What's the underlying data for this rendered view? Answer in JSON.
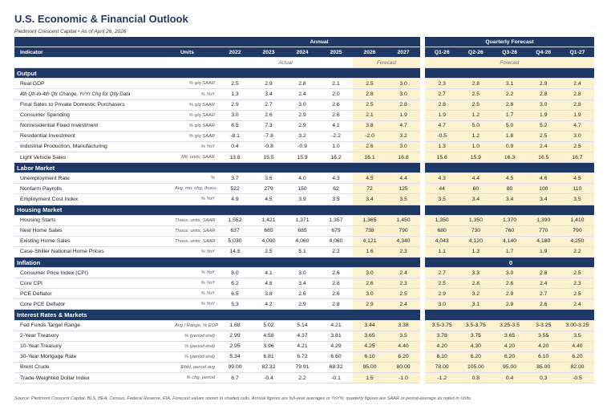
{
  "header": {
    "title": "U.S. Economic & Financial Outlook",
    "subtitle": "Piedmont Crescent Capital • As of April 26, 2026"
  },
  "table": {
    "group_headers": [
      "Annual",
      "Quarterly Forecast"
    ],
    "columns": [
      "Indicator",
      "Units",
      "2022",
      "2023",
      "2024",
      "2025",
      "2026",
      "2027",
      "Q1-26",
      "Q2-26",
      "Q3-26",
      "Q4-26",
      "Q1-27"
    ],
    "subheaders": [
      "Actual",
      "Forecast",
      "Forecast"
    ],
    "sections": [
      {
        "title": "Output",
        "rows": [
          {
            "label": "Real GDP",
            "units": "% q/q SAAR",
            "values": [
              "2.5",
              "2.9",
              "2.8",
              "2.1",
              "2.5",
              "3.0",
              "2.3",
              "2.8",
              "3.1",
              "2.9",
              "2.4"
            ]
          },
          {
            "label": "4th Qtr-to-4th Qtr Change, Yr/Yr Chg for Qtly Data",
            "units": "% YoY",
            "style": "italic",
            "values": [
              "1.3",
              "3.4",
              "2.4",
              "2.0",
              "2.8",
              "3.0",
              "2.7",
              "2.5",
              "2.2",
              "2.8",
              "2.8"
            ]
          },
          {
            "label": "Final Sales to Private Domestic Purchasers",
            "units": "% q/q SAAR",
            "values": [
              "2.9",
              "2.7",
              "3.0",
              "2.6",
              "2.5",
              "2.8",
              "2.8",
              "2.5",
              "2.8",
              "3.0",
              "2.8"
            ]
          },
          {
            "label": "Consumer Spending",
            "units": "% q/q SAAR",
            "values": [
              "3.0",
              "2.6",
              "2.9",
              "2.6",
              "2.1",
              "1.9",
              "1.9",
              "1.2",
              "1.7",
              "1.9",
              "1.9"
            ]
          },
          {
            "label": "Nonresidential Fixed Investment",
            "units": "% q/q SAAR",
            "values": [
              "6.5",
              "7.3",
              "2.9",
              "4.1",
              "3.8",
              "4.7",
              "4.7",
              "5.0",
              "5.0",
              "5.2",
              "4.7"
            ]
          },
          {
            "label": "Residential Investment",
            "units": "% q/q SAAR",
            "values": [
              "-8.1",
              "-7.8",
              "3.2",
              "-2.2",
              "-2.0",
              "3.2",
              "-0.5",
              "1.2",
              "1.8",
              "2.5",
              "3.0"
            ]
          },
          {
            "label": "Industrial Production, Manufacturing",
            "units": "% YoY",
            "values": [
              "0.4",
              "-0.8",
              "-0.9",
              "1.0",
              "2.6",
              "3.0",
              "1.3",
              "1.0",
              "0.9",
              "2.4",
              "2.5"
            ]
          },
          {
            "label": "Light Vehicle Sales",
            "units": "Mil. units, SAAR",
            "values": [
              "13.8",
              "15.5",
              "15.9",
              "16.2",
              "16.1",
              "16.8",
              "15.6",
              "15.9",
              "16.3",
              "16.5",
              "16.7"
            ]
          }
        ]
      },
      {
        "title": "Labor Market",
        "rows": [
          {
            "label": "Unemployment Rate",
            "units": "%",
            "values": [
              "3.7",
              "3.6",
              "4.0",
              "4.3",
              "4.5",
              "4.4",
              "4.3",
              "4.4",
              "4.5",
              "4.6",
              "4.5"
            ]
          },
          {
            "label": "Nonfarm Payrolls",
            "units": "Avg. mo. chg, thous.",
            "values": [
              "522",
              "279",
              "150",
              "62",
              "72",
              "125",
              "44",
              "60",
              "80",
              "100",
              "110"
            ]
          },
          {
            "label": "Employment Cost Index",
            "units": "% YoY",
            "values": [
              "4.9",
              "4.5",
              "3.9",
              "3.5",
              "3.4",
              "3.5",
              "3.5",
              "3.4",
              "3.4",
              "3.4",
              "3.5"
            ]
          }
        ]
      },
      {
        "title": "Housing Market",
        "rows": [
          {
            "label": "Housing Starts",
            "units": "Thous. units, SAAR",
            "values": [
              "1,552",
              "1,421",
              "1,371",
              "1,357",
              "1,365",
              "1,450",
              "1,350",
              "1,350",
              "1,370",
              "1,390",
              "1,410"
            ]
          },
          {
            "label": "New Home Sales",
            "units": "Thous. units, SAAR",
            "values": [
              "637",
              "665",
              "685",
              "679",
              "738",
              "790",
              "680",
              "730",
              "760",
              "770",
              "790"
            ]
          },
          {
            "label": "Existing Home Sales",
            "units": "Thous. units, SAAR",
            "values": [
              "5,030",
              "4,090",
              "4,060",
              "4,060",
              "4,121",
              "4,340",
              "4,043",
              "4,120",
              "4,140",
              "4,180",
              "4,250"
            ]
          },
          {
            "label": "Case-Shiller National Home Prices",
            "units": "% YoY",
            "values": [
              "14.8",
              "2.5",
              "5.1",
              "2.2",
              "1.6",
              "2.3",
              "1.1",
              "1.3",
              "1.7",
              "1.9",
              "2.2"
            ]
          }
        ]
      },
      {
        "title": "Inflation",
        "quarterly_label": "0",
        "rows": [
          {
            "label": "Consumer Price Index (CPI)",
            "units": "% YoY",
            "values": [
              "8.0",
              "4.1",
              "3.0",
              "2.6",
              "3.0",
              "2.4",
              "2.7",
              "3.3",
              "3.0",
              "2.8",
              "2.5"
            ]
          },
          {
            "label": "Core CPI",
            "units": "% YoY",
            "values": [
              "6.2",
              "4.8",
              "3.4",
              "2.8",
              "2.6",
              "2.3",
              "2.5",
              "2.8",
              "2.6",
              "2.4",
              "2.3"
            ]
          },
          {
            "label": "PCE Deflator",
            "units": "% YoY",
            "values": [
              "6.5",
              "3.8",
              "2.6",
              "2.6",
              "3.0",
              "2.5",
              "2.9",
              "3.2",
              "2.9",
              "2.7",
              "2.5"
            ]
          },
          {
            "label": "Core PCE Deflator",
            "units": "% YoY",
            "values": [
              "5.3",
              "4.2",
              "2.9",
              "2.8",
              "2.9",
              "2.4",
              "3.0",
              "3.1",
              "2.9",
              "2.6",
              "2.4"
            ]
          }
        ]
      },
      {
        "title": "Interest Rates & Markets",
        "rows": [
          {
            "label": "Fed Funds Target Range",
            "units": "Avg / Range, % EOP",
            "values": [
              "1.68",
              "5.02",
              "5.14",
              "4.21",
              "3.44",
              "3.38",
              "3.5-3.75",
              "3.5-3.75",
              "3.25-3.5",
              "3-3.25",
              "3.00-3.25"
            ]
          },
          {
            "label": "2-Year Treasury",
            "units": "% (period end)",
            "values": [
              "2.99",
              "4.58",
              "4.37",
              "3.81",
              "3.65",
              "3.5",
              "3.78",
              "3.75",
              "3.65",
              "3.55",
              "3.5"
            ]
          },
          {
            "label": "10-Year Treasury",
            "units": "% (period end)",
            "values": [
              "2.95",
              "3.96",
              "4.21",
              "4.29",
              "4.25",
              "4.40",
              "4.20",
              "4.30",
              "4.20",
              "4.20",
              "4.40"
            ]
          },
          {
            "label": "30-Year Mortgage Rate",
            "units": "% (period end)",
            "values": [
              "5.34",
              "6.81",
              "6.72",
              "6.60",
              "6.10",
              "6.20",
              "6.10",
              "6.20",
              "6.20",
              "6.10",
              "6.20"
            ]
          },
          {
            "label": "Brent Crude",
            "units": "$/bbl, period avg",
            "values": [
              "99.00",
              "82.32",
              "79.91",
              "68.32",
              "95.00",
              "80.00",
              "78.00",
              "105.00",
              "95.00",
              "85.00",
              "82.00"
            ]
          },
          {
            "label": "Trade-Weighted Dollar Index",
            "units": "% chg, period",
            "values": [
              "6.7",
              "-0.4",
              "2.2",
              "-0.1",
              "1.5",
              "-1.0",
              "-1.2",
              "0.8",
              "0.4",
              "0.3",
              "-0.5"
            ]
          }
        ]
      }
    ]
  },
  "footer": "Source: Piedmont Crescent Capital, BLS, BEA, Census, Federal Reserve, EIA. Forecast values shown in shaded cells. Annual figures are full-year averages or YoY%; quarterly figures are SAAR or period-average as noted in Units."
}
